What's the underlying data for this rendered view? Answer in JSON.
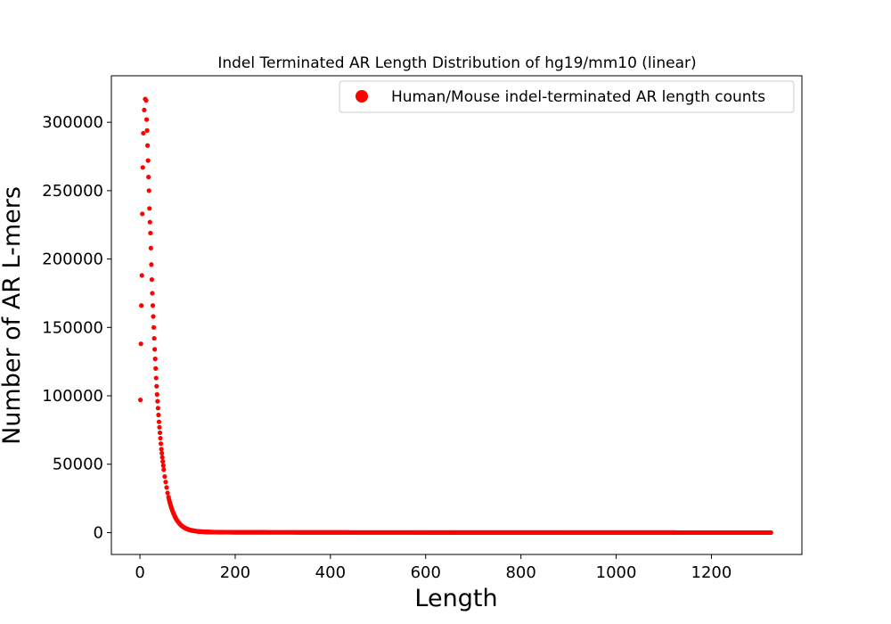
{
  "chart_data": {
    "type": "scatter",
    "title": "Indel Terminated AR Length Distribution of hg19/mm10 (linear)",
    "xlabel": "Length",
    "ylabel": "Number of AR L-mers",
    "xlim": [
      -60,
      1390
    ],
    "ylim": [
      -16000,
      334000
    ],
    "xticks": [
      0,
      200,
      400,
      600,
      800,
      1000,
      1200
    ],
    "yticks": [
      0,
      50000,
      100000,
      150000,
      200000,
      250000,
      300000
    ],
    "xtick_labels": [
      "0",
      "200",
      "400",
      "600",
      "800",
      "1000",
      "1200"
    ],
    "ytick_labels": [
      "0",
      "50000",
      "100000",
      "150000",
      "200000",
      "250000",
      "300000"
    ],
    "grid": false,
    "legend_position": "top-right",
    "color": "#ff0000",
    "series": [
      {
        "name": "Human/Mouse indel-terminated AR length counts",
        "points": [
          [
            1,
            97000
          ],
          [
            2,
            138000
          ],
          [
            3,
            166000
          ],
          [
            4,
            188000
          ],
          [
            5,
            233000
          ],
          [
            6,
            267000
          ],
          [
            7,
            292000
          ],
          [
            9,
            309000
          ],
          [
            11,
            317000
          ],
          [
            13,
            316000
          ],
          [
            14,
            302000
          ],
          [
            15,
            294000
          ],
          [
            16,
            283000
          ],
          [
            17,
            272000
          ],
          [
            18,
            260000
          ],
          [
            19,
            250000
          ],
          [
            20,
            237000
          ],
          [
            21,
            227000
          ],
          [
            22,
            219000
          ],
          [
            23,
            208000
          ],
          [
            24,
            196000
          ],
          [
            25,
            185000
          ],
          [
            26,
            175000
          ],
          [
            27,
            166000
          ],
          [
            28,
            158000
          ],
          [
            29,
            150000
          ],
          [
            30,
            142000
          ],
          [
            31,
            134000
          ],
          [
            32,
            127000
          ],
          [
            33,
            120000
          ],
          [
            34,
            113000
          ],
          [
            35,
            107000
          ],
          [
            36,
            101000
          ],
          [
            37,
            96000
          ],
          [
            38,
            91000
          ],
          [
            39,
            86000
          ],
          [
            40,
            81000
          ],
          [
            41,
            77000
          ],
          [
            42,
            73000
          ],
          [
            43,
            69000
          ],
          [
            44,
            65000
          ],
          [
            45,
            61000
          ],
          [
            46,
            58000
          ],
          [
            47,
            55000
          ],
          [
            48,
            52000
          ],
          [
            49,
            49000
          ],
          [
            50,
            46000
          ],
          [
            52,
            41000
          ],
          [
            54,
            37000
          ],
          [
            56,
            33000
          ],
          [
            58,
            29000
          ],
          [
            60,
            26000
          ],
          [
            62,
            23000
          ],
          [
            64,
            20500
          ],
          [
            66,
            18200
          ],
          [
            68,
            16200
          ],
          [
            70,
            14400
          ],
          [
            72,
            12800
          ],
          [
            74,
            11300
          ],
          [
            76,
            10000
          ],
          [
            78,
            8900
          ],
          [
            80,
            7900
          ],
          [
            84,
            6200
          ],
          [
            88,
            4900
          ],
          [
            92,
            3900
          ],
          [
            96,
            3100
          ],
          [
            100,
            2500
          ],
          [
            105,
            1900
          ],
          [
            110,
            1500
          ],
          [
            115,
            1200
          ],
          [
            120,
            950
          ],
          [
            125,
            780
          ],
          [
            130,
            650
          ],
          [
            140,
            480
          ],
          [
            150,
            380
          ],
          [
            160,
            320
          ],
          [
            175,
            270
          ],
          [
            190,
            240
          ],
          [
            210,
            220
          ],
          [
            240,
            200
          ],
          [
            280,
            180
          ],
          [
            330,
            150
          ],
          [
            400,
            120
          ],
          [
            500,
            90
          ],
          [
            600,
            70
          ],
          [
            700,
            55
          ],
          [
            800,
            45
          ],
          [
            900,
            35
          ],
          [
            1000,
            30
          ],
          [
            1100,
            25
          ],
          [
            1200,
            20
          ],
          [
            1300,
            15
          ],
          [
            1325,
            12
          ]
        ]
      }
    ]
  }
}
